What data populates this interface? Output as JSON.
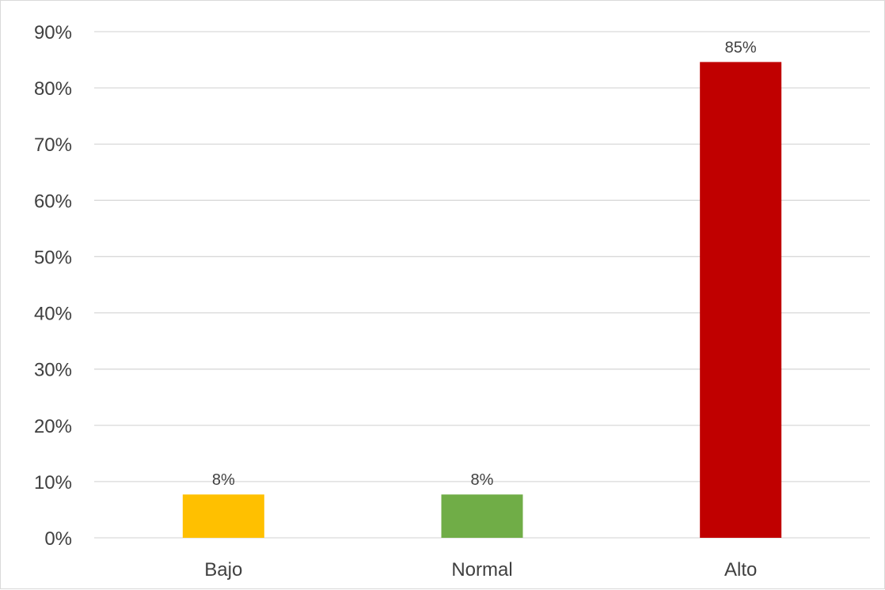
{
  "chart_data": {
    "type": "bar",
    "categories": [
      "Bajo",
      "Normal",
      "Alto"
    ],
    "values": [
      7.7,
      7.7,
      84.6
    ],
    "data_labels": [
      "8%",
      "8%",
      "85%"
    ],
    "colors": [
      "#ffc000",
      "#70ad47",
      "#c00000"
    ],
    "ylim": [
      0,
      90
    ],
    "yticks": [
      0,
      10,
      20,
      30,
      40,
      50,
      60,
      70,
      80,
      90
    ],
    "ytick_labels": [
      "0%",
      "10%",
      "20%",
      "30%",
      "40%",
      "50%",
      "60%",
      "70%",
      "80%",
      "90%"
    ],
    "grid": true,
    "legend": "none"
  }
}
